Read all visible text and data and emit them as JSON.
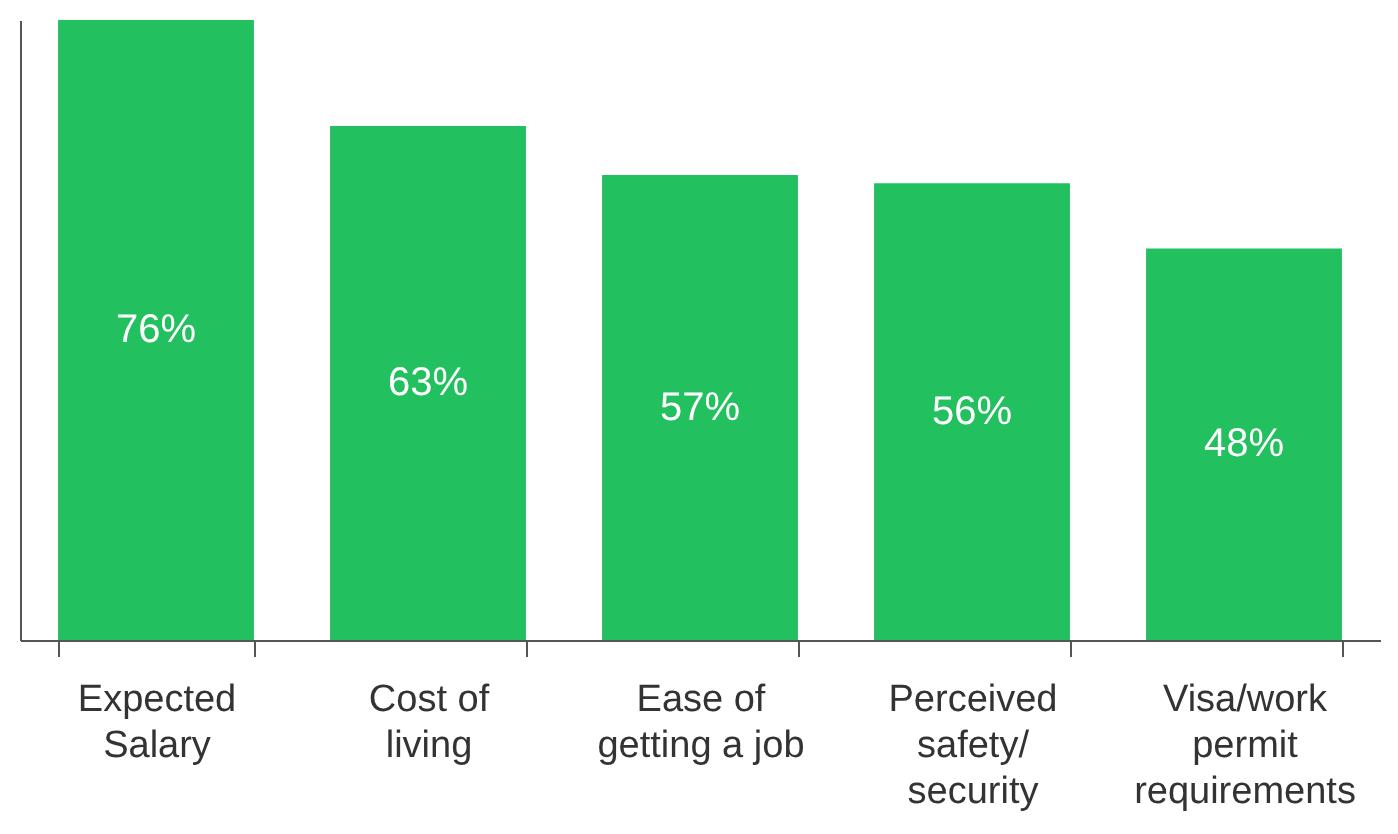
{
  "chart_data": {
    "type": "bar",
    "categories": [
      "Expected\nSalary",
      "Cost of\nliving",
      "Ease of\ngetting a job",
      "Perceived\nsafety/\nsecurity",
      "Visa/work\npermit\nrequirements"
    ],
    "values": [
      76,
      63,
      57,
      56,
      48
    ],
    "value_labels": [
      "76%",
      "63%",
      "57%",
      "56%",
      "48%"
    ],
    "color": "#22c05e"
  }
}
